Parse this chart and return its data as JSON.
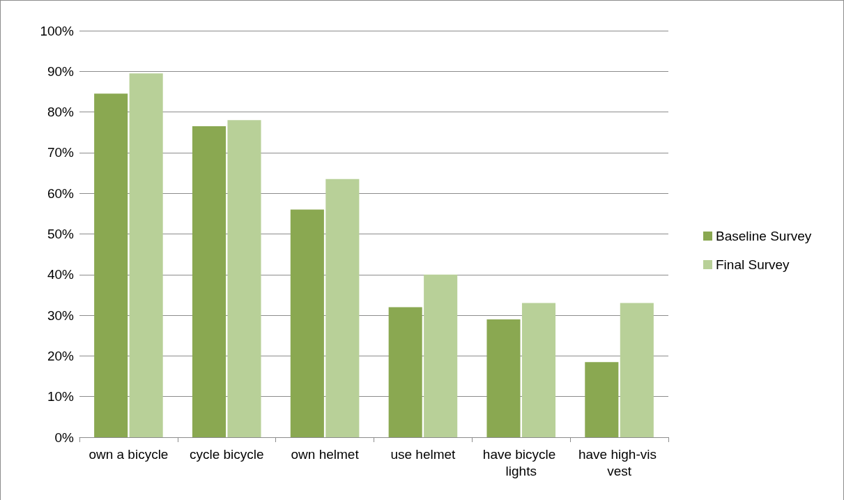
{
  "chart_data": {
    "type": "bar",
    "categories": [
      "own a bicycle",
      "cycle bicycle",
      "own helmet",
      "use helmet",
      "have bicycle lights",
      "have high-vis vest"
    ],
    "series": [
      {
        "name": "Baseline Survey",
        "color": "#8aa851",
        "values": [
          84.5,
          76.5,
          56,
          32,
          29,
          18.5
        ]
      },
      {
        "name": "Final Survey",
        "color": "#b8d098",
        "values": [
          89.5,
          78,
          63.5,
          40,
          33,
          33
        ]
      }
    ],
    "ylim": [
      0,
      100
    ],
    "yticks": [
      {
        "value": 0,
        "label": "0%"
      },
      {
        "value": 10,
        "label": "10%"
      },
      {
        "value": 20,
        "label": "20%"
      },
      {
        "value": 30,
        "label": "30%"
      },
      {
        "value": 40,
        "label": "40%"
      },
      {
        "value": 50,
        "label": "50%"
      },
      {
        "value": 60,
        "label": "60%"
      },
      {
        "value": 70,
        "label": "70%"
      },
      {
        "value": 80,
        "label": "80%"
      },
      {
        "value": 90,
        "label": "90%"
      },
      {
        "value": 100,
        "label": "100%"
      }
    ],
    "grid": "y",
    "legend": "right"
  }
}
